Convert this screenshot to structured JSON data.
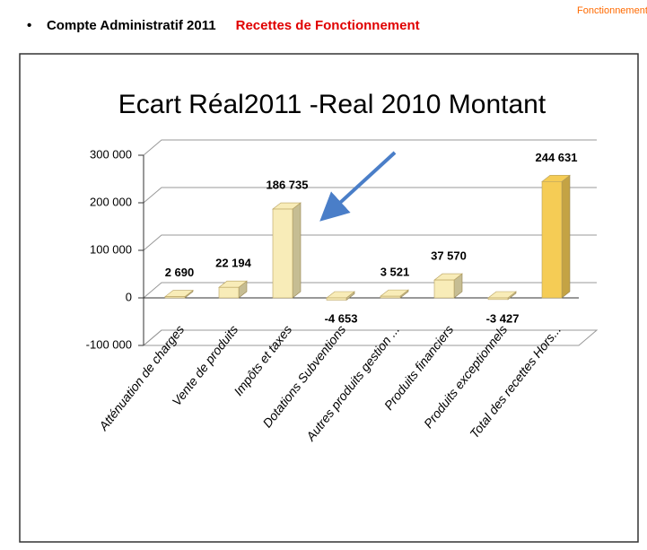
{
  "header": {
    "bullet": "•",
    "title": "Compte Administratif  2011",
    "subtitle": "Recettes  de Fonctionnement",
    "corner": "Fonctionnement"
  },
  "chart_data": {
    "type": "bar3d",
    "title": "Ecart   Réal2011 -Real 2010 Montant",
    "categories": [
      "Atténuation de charges",
      "Vente de produits",
      "Impôts et taxes",
      "Dotations Subventions",
      "Autres produits gestion ...",
      "Produits financiers",
      "Produits exceptionnels",
      "Total des recettes Hors..."
    ],
    "values": [
      2690,
      22194,
      186735,
      -4653,
      3521,
      37570,
      -3427,
      244631
    ],
    "value_labels": [
      "2 690",
      "22 194",
      "186 735",
      "-4 653",
      "3 521",
      "37 570",
      "-3 427",
      "244 631"
    ],
    "colors": [
      "#f8ecb8",
      "#f8ecb8",
      "#f8ecb8",
      "#f8ecb8",
      "#f8ecb8",
      "#f8ecb8",
      "#f8ecb8",
      "#f5cc55"
    ],
    "ylim": [
      -100000,
      300000
    ],
    "yticks": [
      {
        "value": -100000,
        "label": "-100 000"
      },
      0,
      {
        "value": 100000,
        "label": "100 000"
      },
      {
        "value": 200000,
        "label": "200 000"
      },
      {
        "value": 300000,
        "label": "300 000"
      }
    ],
    "grid": true
  }
}
